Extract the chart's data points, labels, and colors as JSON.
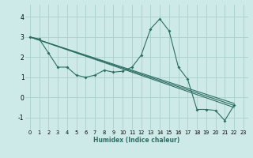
{
  "xlabel": "Humidex (Indice chaleur)",
  "ylabel": "",
  "xlim": [
    -0.5,
    23.5
  ],
  "ylim": [
    -1.6,
    4.6
  ],
  "yticks": [
    -1,
    0,
    1,
    2,
    3,
    4
  ],
  "xticks": [
    0,
    1,
    2,
    3,
    4,
    5,
    6,
    7,
    8,
    9,
    10,
    11,
    12,
    13,
    14,
    15,
    16,
    17,
    18,
    19,
    20,
    21,
    22,
    23
  ],
  "bg_color": "#ceeae8",
  "grid_color": "#aacfcd",
  "line_color": "#2d6e64",
  "series_main": [
    3.0,
    2.9,
    2.2,
    1.5,
    1.5,
    1.1,
    1.0,
    1.1,
    1.35,
    1.25,
    1.3,
    1.5,
    2.1,
    3.4,
    3.9,
    3.3,
    1.5,
    0.9,
    -0.6,
    -0.6,
    -0.65,
    -1.15,
    -0.4,
    null
  ],
  "series_lines": [
    {
      "x": [
        0,
        22
      ],
      "y": [
        3.0,
        -0.4
      ]
    },
    {
      "x": [
        0,
        22
      ],
      "y": [
        3.0,
        -0.3
      ]
    },
    {
      "x": [
        0,
        22
      ],
      "y": [
        3.0,
        -0.5
      ]
    }
  ]
}
